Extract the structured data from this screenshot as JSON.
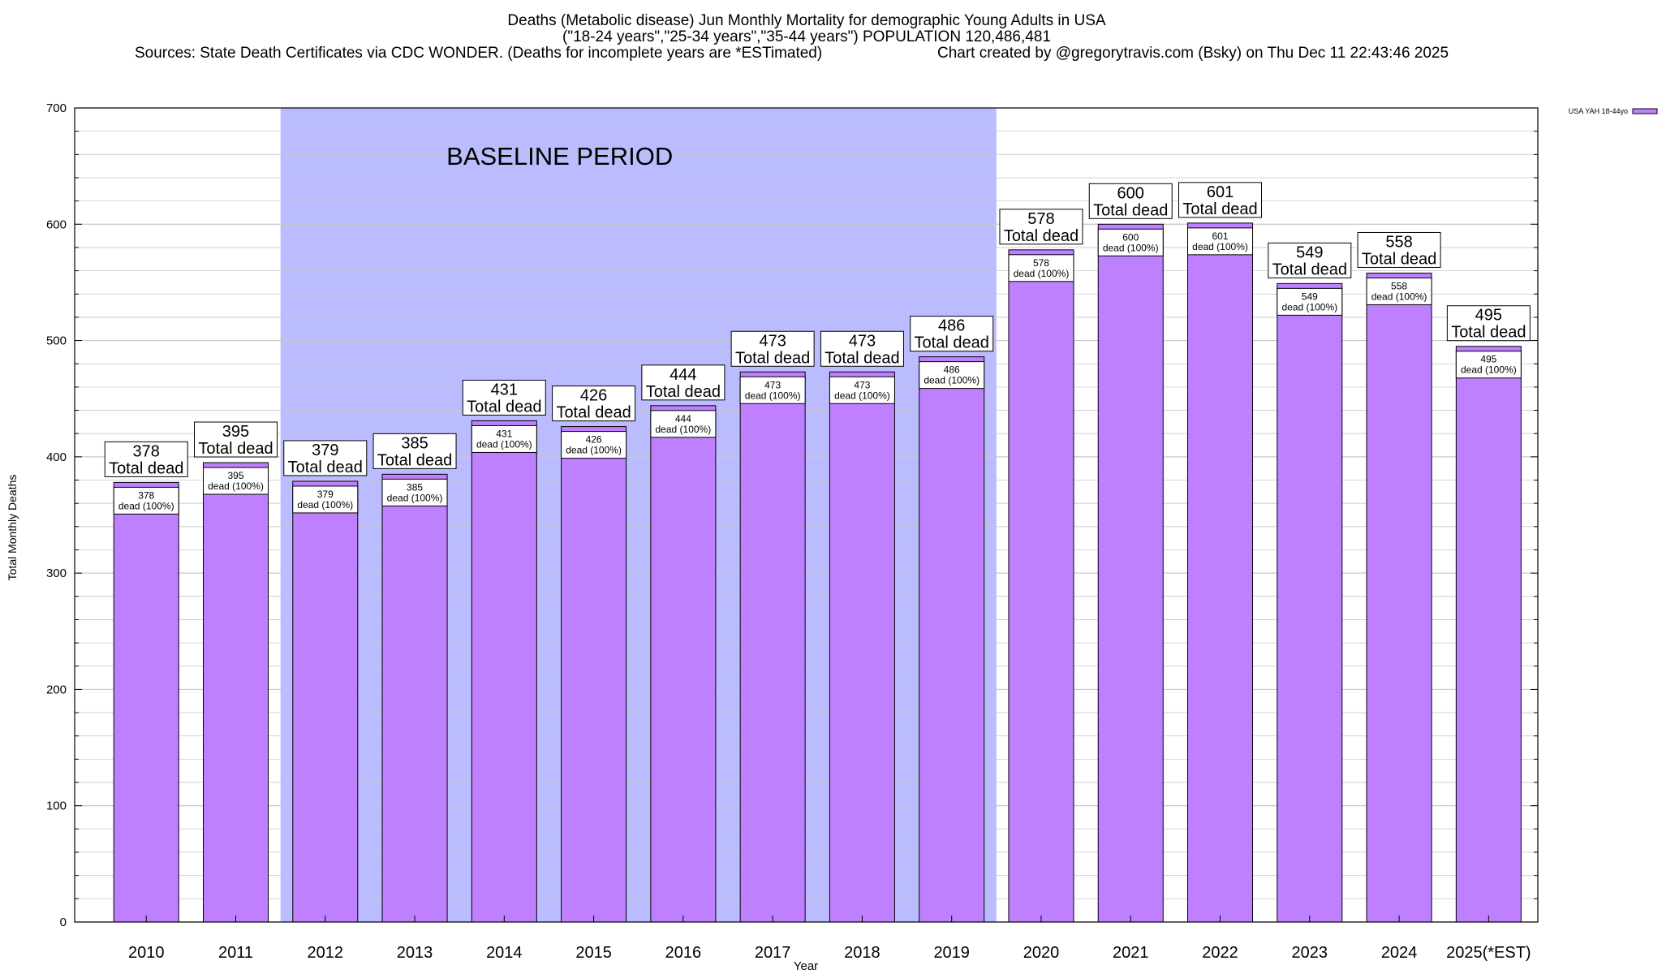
{
  "chart_data": {
    "type": "bar",
    "title_lines": [
      "Deaths (Metabolic disease) Jun Monthly Mortality for demographic Young Adults in USA",
      "(\"18-24 years\",\"25-34 years\",\"35-44 years\") POPULATION 120,486,481"
    ],
    "sources": "Sources: State Death Certificates via CDC WONDER. (Deaths for incomplete years are *ESTimated)",
    "credit": "Chart created by @gregorytravis.com (Bsky) on Thu Dec 11 22:43:46 2025",
    "xlabel": "Year",
    "ylabel": "Total Monthly Deaths",
    "ylim": [
      0,
      700
    ],
    "yticks": [
      0,
      100,
      200,
      300,
      400,
      500,
      600,
      700
    ],
    "grid": true,
    "legend": {
      "label": "USA YAH 18-44yo",
      "position": "top-right"
    },
    "baseline": {
      "label": "BASELINE PERIOD",
      "from": "2012",
      "to": "2019"
    },
    "colors": {
      "bar": "#bf80ff",
      "baseline": "#bbbbff",
      "grid": "#c8c8c8"
    },
    "total_label": "Total dead",
    "bar_label_suffix": "dead (100%)",
    "categories": [
      "2010",
      "2011",
      "2012",
      "2013",
      "2014",
      "2015",
      "2016",
      "2017",
      "2018",
      "2019",
      "2020",
      "2021",
      "2022",
      "2023",
      "2024",
      "2025(*EST)"
    ],
    "series": [
      {
        "name": "USA YAH 18-44yo",
        "values": [
          378,
          395,
          379,
          385,
          431,
          426,
          444,
          473,
          473,
          486,
          578,
          600,
          601,
          549,
          558,
          495
        ]
      }
    ]
  }
}
